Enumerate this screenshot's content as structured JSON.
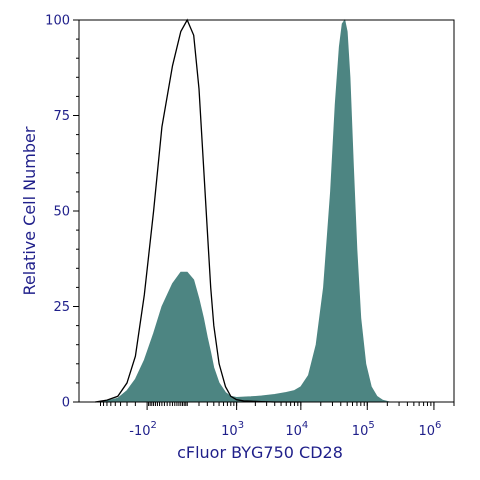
{
  "chart_data": {
    "type": "area",
    "xlabel": "cFluor BYG750 CD28",
    "ylabel": "Relative Cell Number",
    "x_scale": "biexponential",
    "ylim": [
      0,
      100
    ],
    "y_ticks": [
      0,
      25,
      50,
      75,
      100
    ],
    "x_ticks": [
      {
        "value": -100,
        "label": "-10",
        "exp": "2"
      },
      {
        "value": 1000,
        "label": "10",
        "exp": "3"
      },
      {
        "value": 10000,
        "label": "10",
        "exp": "4"
      },
      {
        "value": 100000,
        "label": "10",
        "exp": "5"
      },
      {
        "value": 1000000,
        "label": "10",
        "exp": "6"
      }
    ],
    "grid": false,
    "series": [
      {
        "style": "outline",
        "color": "#000000",
        "x": [
          -1100,
          -700,
          -450,
          -300,
          -200,
          -120,
          -60,
          -20,
          20,
          60,
          100,
          150,
          200,
          250,
          300,
          350,
          400,
          500,
          650,
          800,
          1000,
          1300,
          1700,
          2500,
          4000,
          10000
        ],
        "y": [
          0,
          0.5,
          1.5,
          5,
          12,
          28,
          50,
          72,
          88,
          97,
          100,
          96,
          82,
          62,
          45,
          30,
          20,
          10,
          4,
          1.5,
          0.6,
          0.3,
          0.2,
          0.1,
          0,
          0
        ]
      },
      {
        "style": "filled",
        "color": "#4d8582",
        "x": [
          -1100,
          -700,
          -450,
          -300,
          -200,
          -120,
          -60,
          -20,
          20,
          60,
          100,
          150,
          200,
          250,
          300,
          350,
          400,
          500,
          650,
          800,
          1000,
          1300,
          1700,
          2500,
          4000,
          6000,
          8000,
          10000,
          13000,
          17000,
          22000,
          28000,
          33000,
          38000,
          42000,
          46000,
          50000,
          55000,
          62000,
          70000,
          80000,
          95000,
          115000,
          140000,
          170000,
          220000
        ],
        "y": [
          0,
          0.3,
          1,
          3,
          6,
          11,
          18,
          25,
          31,
          34,
          34,
          32,
          27,
          22,
          17,
          13,
          9,
          5,
          2.5,
          1.5,
          1.2,
          1.3,
          1.4,
          1.6,
          2,
          2.5,
          3,
          4,
          7,
          15,
          30,
          55,
          78,
          93,
          99,
          100,
          97,
          85,
          62,
          40,
          22,
          10,
          4,
          1.5,
          0.5,
          0
        ]
      }
    ]
  }
}
